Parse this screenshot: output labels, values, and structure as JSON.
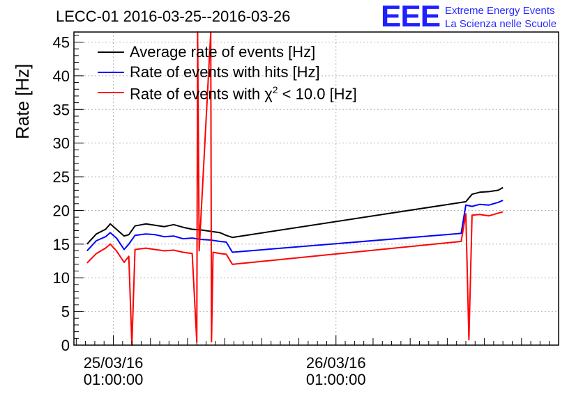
{
  "title": "LECC-01 2016-03-25--2016-03-26",
  "logo": {
    "mark": "EEE",
    "line1": "Extreme Energy Events",
    "line2": "La Scienza nelle Scuole",
    "color": "#1f1fff"
  },
  "chart_data": {
    "type": "line",
    "title": "LECC-01 2016-03-25--2016-03-26",
    "xlabel": "",
    "ylabel": "Rate [Hz]",
    "ylim": [
      0,
      46.5
    ],
    "yticks": [
      0,
      5,
      10,
      15,
      20,
      25,
      30,
      35,
      40,
      45
    ],
    "ytick_labels": [
      "0",
      "5",
      "10",
      "15",
      "20",
      "25",
      "30",
      "35",
      "40",
      "45"
    ],
    "xlim": [
      "2016-03-24 20:45",
      "2016-03-27 01:00"
    ],
    "xticks": [
      {
        "time": "2016-03-25 01:00",
        "label_date": "25/03/16",
        "label_time": "01:00:00"
      },
      {
        "time": "2016-03-26 01:00",
        "label_date": "26/03/16",
        "label_time": "01:00:00"
      }
    ],
    "grid": true,
    "legend_position": "top-left",
    "series": [
      {
        "name": "Average rate of events [Hz]",
        "legend_label_prefix": "Average rate of events [Hz]",
        "color": "#000000",
        "points": [
          [
            "2016-03-24 22:10",
            15.0
          ],
          [
            "2016-03-24 23:10",
            16.5
          ],
          [
            "2016-03-25 00:10",
            17.2
          ],
          [
            "2016-03-25 00:40",
            18.0
          ],
          [
            "2016-03-25 01:20",
            17.2
          ],
          [
            "2016-03-25 02:10",
            16.2
          ],
          [
            "2016-03-25 02:40",
            16.4
          ],
          [
            "2016-03-25 03:20",
            17.7
          ],
          [
            "2016-03-25 04:30",
            18.0
          ],
          [
            "2016-03-25 05:30",
            17.8
          ],
          [
            "2016-03-25 06:30",
            17.6
          ],
          [
            "2016-03-25 07:30",
            17.9
          ],
          [
            "2016-03-25 08:30",
            17.5
          ],
          [
            "2016-03-25 09:30",
            17.2
          ],
          [
            "2016-03-25 10:30",
            17.1
          ],
          [
            "2016-03-25 11:30",
            16.9
          ],
          [
            "2016-03-25 12:30",
            16.7
          ],
          [
            "2016-03-25 13:10",
            16.3
          ],
          [
            "2016-03-25 13:50",
            16.0
          ],
          [
            "2016-03-26 15:00",
            21.3
          ],
          [
            "2016-03-26 15:40",
            22.4
          ],
          [
            "2016-03-26 16:30",
            22.7
          ],
          [
            "2016-03-26 17:30",
            22.8
          ],
          [
            "2016-03-26 18:30",
            23.0
          ],
          [
            "2016-03-26 19:00",
            23.4
          ]
        ]
      },
      {
        "name": "Rate of events with hits [Hz]",
        "legend_label_prefix": "Rate of events with hits [Hz]",
        "color": "#0000ff",
        "points": [
          [
            "2016-03-24 22:10",
            14.0
          ],
          [
            "2016-03-24 23:10",
            15.5
          ],
          [
            "2016-03-25 00:10",
            16.1
          ],
          [
            "2016-03-25 00:40",
            16.7
          ],
          [
            "2016-03-25 01:20",
            15.9
          ],
          [
            "2016-03-25 02:10",
            14.2
          ],
          [
            "2016-03-25 02:40",
            15.0
          ],
          [
            "2016-03-25 03:20",
            16.3
          ],
          [
            "2016-03-25 04:30",
            16.5
          ],
          [
            "2016-03-25 05:30",
            16.4
          ],
          [
            "2016-03-25 06:30",
            16.1
          ],
          [
            "2016-03-25 07:30",
            16.2
          ],
          [
            "2016-03-25 08:30",
            15.8
          ],
          [
            "2016-03-25 09:30",
            15.9
          ],
          [
            "2016-03-25 10:30",
            15.7
          ],
          [
            "2016-03-25 11:30",
            15.6
          ],
          [
            "2016-03-25 12:30",
            15.4
          ],
          [
            "2016-03-25 13:10",
            15.3
          ],
          [
            "2016-03-25 13:50",
            13.8
          ],
          [
            "2016-03-26 14:30",
            16.6
          ],
          [
            "2016-03-26 15:00",
            20.8
          ],
          [
            "2016-03-26 15:40",
            20.6
          ],
          [
            "2016-03-26 16:30",
            20.9
          ],
          [
            "2016-03-26 17:30",
            20.8
          ],
          [
            "2016-03-26 18:30",
            21.2
          ],
          [
            "2016-03-26 19:00",
            21.5
          ]
        ]
      },
      {
        "name": "Rate of events with χ² < 10.0 [Hz]",
        "legend_label_prefix": "Rate of events with χ",
        "legend_label_sup": "2",
        "legend_label_suffix": " < 10.0 [Hz]",
        "color": "#ff0000",
        "points": [
          [
            "2016-03-24 22:10",
            12.2
          ],
          [
            "2016-03-24 23:10",
            13.6
          ],
          [
            "2016-03-25 00:10",
            14.4
          ],
          [
            "2016-03-25 00:40",
            15.0
          ],
          [
            "2016-03-25 01:20",
            14.0
          ],
          [
            "2016-03-25 02:10",
            12.3
          ],
          [
            "2016-03-25 02:40",
            13.2
          ],
          [
            "2016-03-25 03:00",
            0.0
          ],
          [
            "2016-03-25 03:20",
            14.2
          ],
          [
            "2016-03-25 04:30",
            14.4
          ],
          [
            "2016-03-25 05:30",
            14.2
          ],
          [
            "2016-03-25 06:30",
            14.0
          ],
          [
            "2016-03-25 07:30",
            14.1
          ],
          [
            "2016-03-25 08:30",
            13.8
          ],
          [
            "2016-03-25 09:30",
            13.6
          ],
          [
            "2016-03-25 10:00",
            0.5
          ],
          [
            "2016-03-25 10:05",
            46.5
          ],
          [
            "2016-03-25 10:15",
            14.0
          ],
          [
            "2016-03-25 11:30",
            46.5
          ],
          [
            "2016-03-25 11:35",
            0.5
          ],
          [
            "2016-03-25 11:45",
            13.8
          ],
          [
            "2016-03-25 12:30",
            13.6
          ],
          [
            "2016-03-25 13:10",
            13.5
          ],
          [
            "2016-03-25 13:50",
            12.0
          ],
          [
            "2016-03-26 14:30",
            15.4
          ],
          [
            "2016-03-26 15:00",
            19.5
          ],
          [
            "2016-03-26 15:20",
            0.8
          ],
          [
            "2016-03-26 15:40",
            19.3
          ],
          [
            "2016-03-26 16:30",
            19.4
          ],
          [
            "2016-03-26 17:30",
            19.2
          ],
          [
            "2016-03-26 18:30",
            19.6
          ],
          [
            "2016-03-26 19:00",
            19.8
          ]
        ]
      }
    ]
  }
}
